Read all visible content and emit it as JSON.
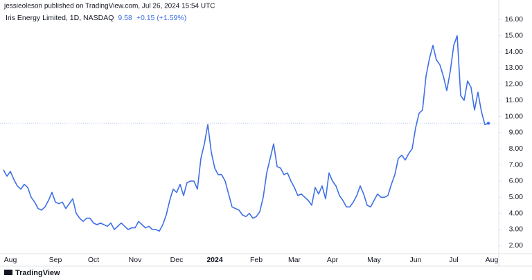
{
  "header": "jessieoleson published on TradingView.com, Jul 26, 2024 15:54 UTC",
  "footer": "TradingView",
  "chart_data": {
    "type": "line",
    "title": "Iris Energy Limited, 1D, NASDAQ",
    "last_price": "9.58",
    "change": "+0.15 (+1.59%)",
    "categories": [
      null,
      null,
      "Aug",
      null,
      null,
      null,
      null,
      null,
      null,
      null,
      null,
      null,
      null,
      null,
      null,
      "Sep",
      null,
      null,
      null,
      null,
      null,
      null,
      null,
      null,
      null,
      null,
      "Oct",
      null,
      null,
      null,
      null,
      null,
      null,
      null,
      null,
      null,
      null,
      null,
      "Nov",
      null,
      null,
      null,
      null,
      null,
      null,
      null,
      null,
      null,
      null,
      null,
      "Dec",
      null,
      null,
      null,
      null,
      null,
      null,
      null,
      null,
      null,
      null,
      "2024",
      null,
      null,
      null,
      null,
      null,
      null,
      null,
      null,
      null,
      null,
      null,
      "Feb",
      null,
      null,
      null,
      null,
      null,
      null,
      null,
      null,
      null,
      null,
      "Mar",
      null,
      null,
      null,
      null,
      null,
      null,
      null,
      null,
      null,
      null,
      "Apr",
      null,
      null,
      null,
      null,
      null,
      null,
      null,
      null,
      null,
      null,
      null,
      "May",
      null,
      null,
      null,
      null,
      null,
      null,
      null,
      null,
      null,
      null,
      null,
      "Jun",
      null,
      null,
      null,
      null,
      null,
      null,
      null,
      null,
      null,
      null,
      "Jul",
      null,
      null,
      null,
      null,
      null,
      null,
      null,
      null,
      null,
      null,
      "Aug",
      null
    ],
    "series": [
      {
        "name": "Iris Energy Limited",
        "color": "#3d6fe6",
        "values": [
          6.7,
          6.3,
          6.6,
          6.1,
          5.7,
          5.5,
          5.8,
          5.6,
          5.0,
          4.7,
          4.3,
          4.2,
          4.4,
          4.8,
          5.3,
          4.7,
          4.6,
          4.7,
          4.3,
          4.6,
          4.9,
          4.0,
          3.7,
          3.5,
          3.7,
          3.7,
          3.4,
          3.3,
          3.4,
          3.3,
          3.2,
          3.4,
          3.0,
          3.2,
          3.4,
          3.2,
          3.0,
          3.1,
          3.1,
          3.5,
          3.3,
          3.1,
          3.2,
          3.0,
          3.0,
          2.9,
          3.3,
          3.9,
          4.8,
          5.5,
          5.3,
          5.8,
          5.1,
          5.9,
          6.0,
          6.0,
          5.5,
          7.4,
          8.3,
          9.5,
          7.8,
          6.8,
          6.4,
          6.4,
          6.0,
          5.2,
          4.4,
          4.3,
          4.2,
          3.9,
          3.8,
          4.0,
          3.7,
          3.8,
          4.1,
          5.0,
          6.5,
          7.4,
          8.3,
          6.9,
          6.8,
          6.4,
          6.5,
          6.0,
          5.6,
          5.1,
          5.2,
          5.0,
          4.8,
          4.5,
          5.6,
          5.2,
          5.7,
          4.9,
          6.5,
          6.0,
          5.7,
          5.1,
          4.8,
          4.4,
          4.4,
          4.7,
          5.1,
          5.7,
          5.2,
          4.5,
          4.4,
          4.8,
          5.2,
          5.0,
          5.0,
          5.1,
          5.8,
          6.4,
          7.4,
          7.6,
          7.3,
          7.7,
          8.0,
          9.3,
          10.2,
          10.4,
          12.5,
          13.6,
          14.4,
          13.5,
          13.2,
          12.5,
          11.6,
          12.8,
          14.4,
          15.0,
          11.3,
          11.0,
          12.2,
          11.8,
          10.4,
          11.5,
          10.3,
          9.5,
          9.58,
          null,
          null
        ]
      }
    ],
    "ylim": [
      1.5,
      16.7
    ],
    "yticks": [
      {
        "value": 2,
        "label": "2.00"
      },
      {
        "value": 3,
        "label": "3.00"
      },
      {
        "value": 4,
        "label": "4.00"
      },
      {
        "value": 5,
        "label": "5.00"
      },
      {
        "value": 6,
        "label": "6.00"
      },
      {
        "value": 7,
        "label": "7.00"
      },
      {
        "value": 8,
        "label": "8.00"
      },
      {
        "value": 9,
        "label": "9.00"
      },
      {
        "value": 10,
        "label": "10.00"
      },
      {
        "value": 11,
        "label": "11.00"
      },
      {
        "value": 12,
        "label": "12.00"
      },
      {
        "value": 13,
        "label": "13.00"
      },
      {
        "value": 14,
        "label": "14.00"
      },
      {
        "value": 15,
        "label": "15.00"
      },
      {
        "value": 16,
        "label": "16.00"
      }
    ],
    "grid": false
  }
}
